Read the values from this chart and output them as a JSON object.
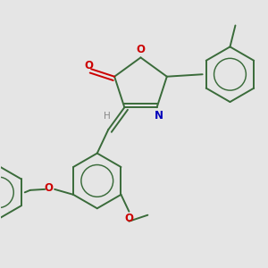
{
  "background_color": "#e5e5e5",
  "bond_color": "#3a6b3a",
  "O_color": "#cc0000",
  "N_color": "#0000bb",
  "H_color": "#888888",
  "figsize": [
    3.0,
    3.0
  ],
  "dpi": 100,
  "xlim": [
    -2.8,
    3.2
  ],
  "ylim": [
    -3.2,
    2.8
  ]
}
